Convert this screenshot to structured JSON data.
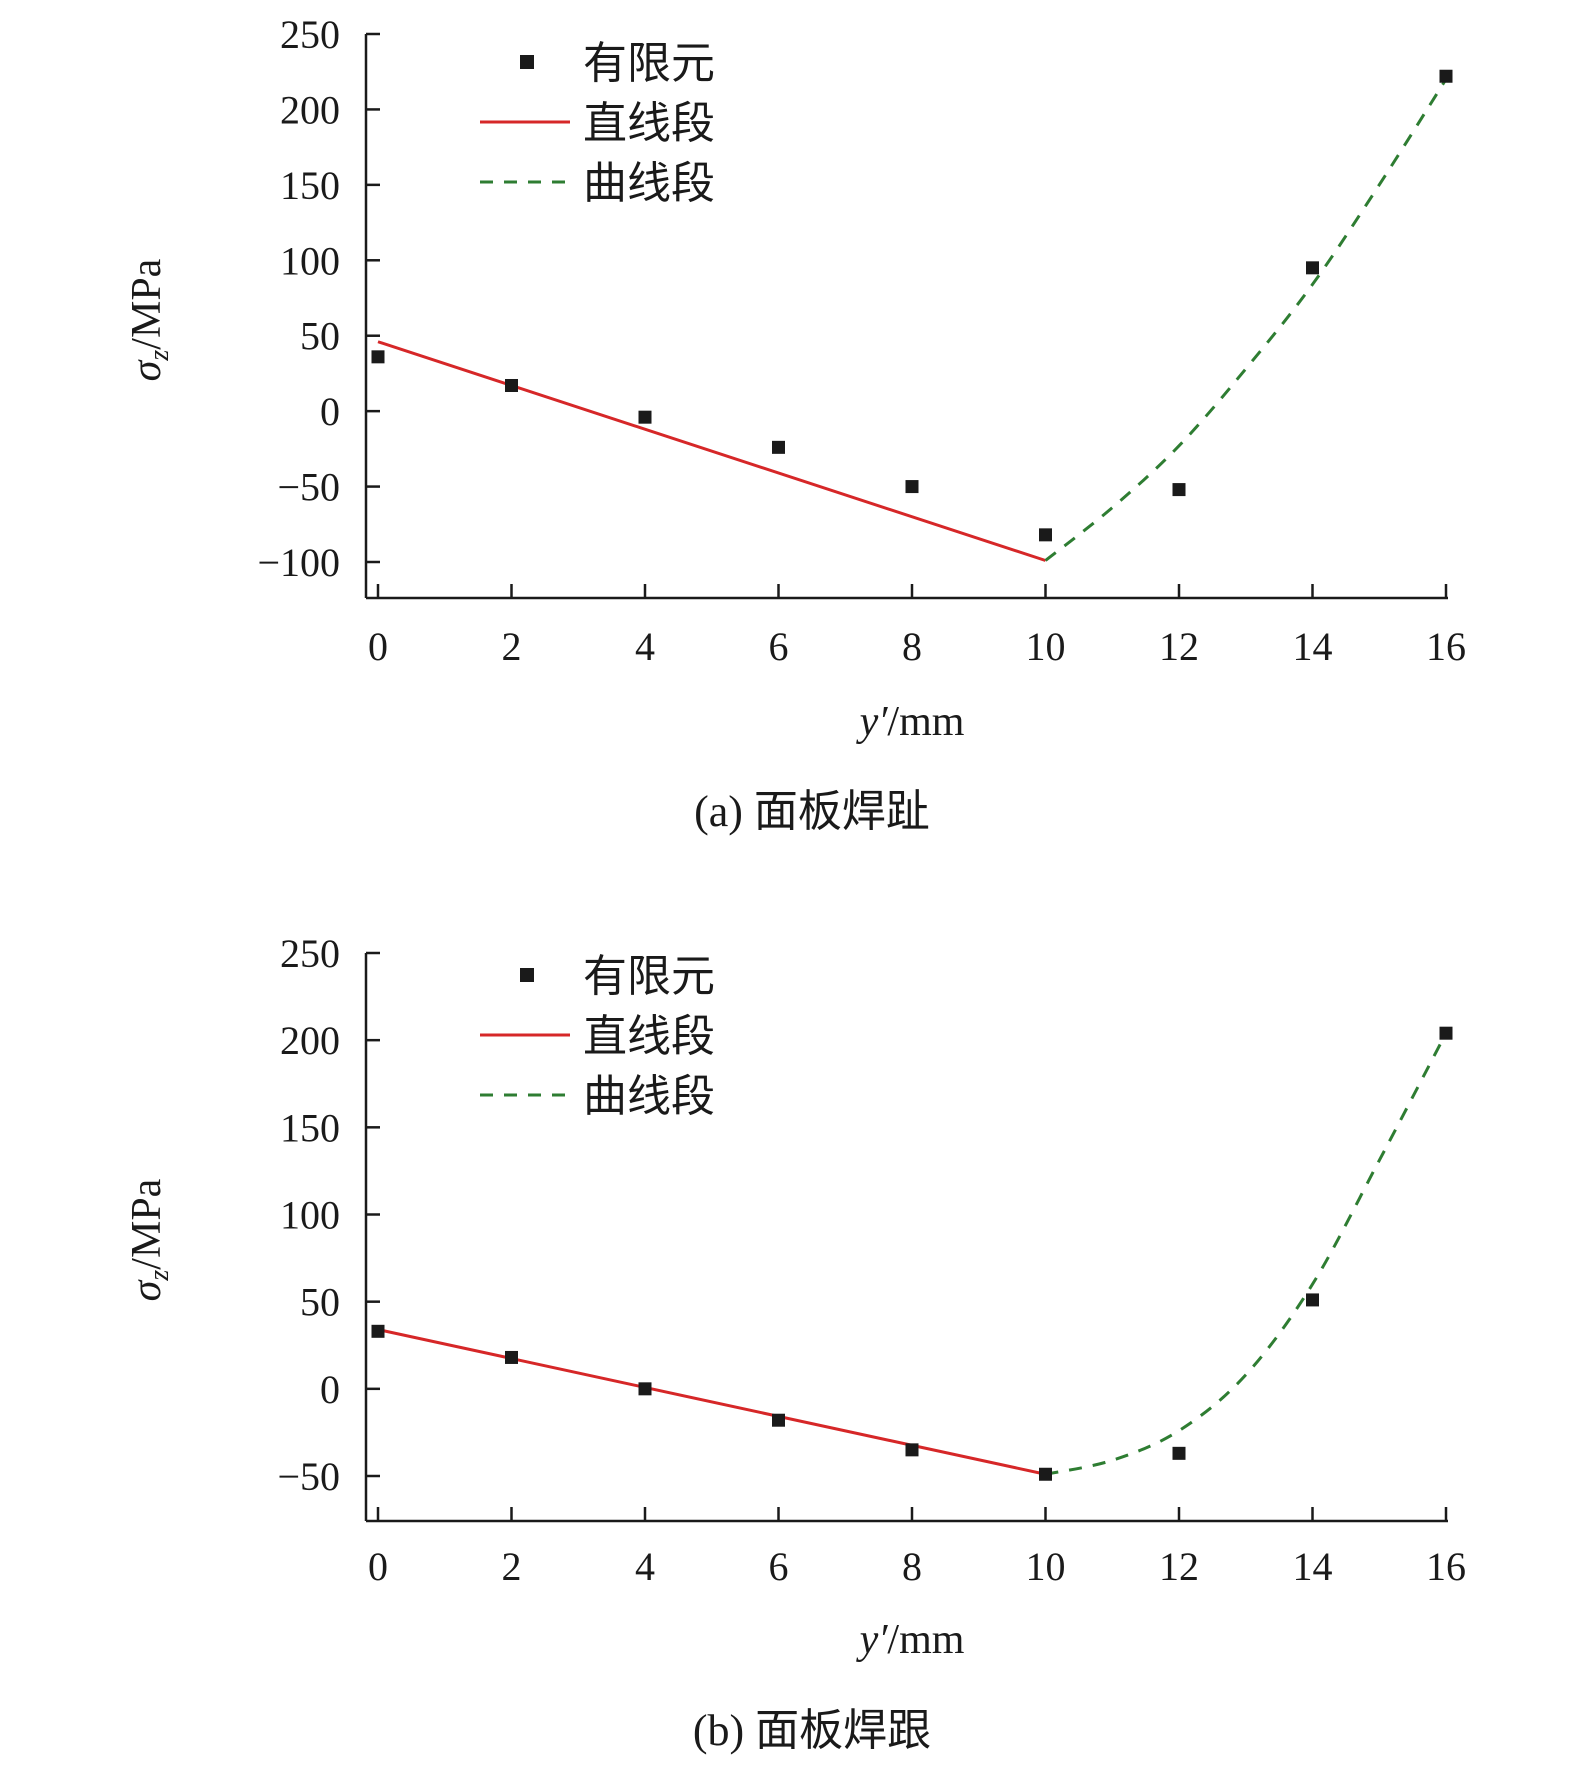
{
  "colors": {
    "straight_line": "#d62728",
    "curve_line": "#2e7d32",
    "marker": "#1a1a1a",
    "axis": "#1a1a1a"
  },
  "chart_data": [
    {
      "type": "scatter",
      "caption": "(a) 面板焊趾",
      "xlabel_var": "y′",
      "xlabel_unit": "/mm",
      "ylabel_var": "σ",
      "ylabel_sub": "z",
      "ylabel_unit": "/MPa",
      "xlim": [
        0,
        16
      ],
      "ylim": [
        -125,
        250
      ],
      "xticks": [
        0,
        2,
        4,
        6,
        8,
        10,
        12,
        14,
        16
      ],
      "yticks": [
        -100,
        -50,
        0,
        50,
        100,
        150,
        200,
        250
      ],
      "ytick_labels": [
        "−100",
        "−50",
        "0",
        "50",
        "100",
        "150",
        "200",
        "250"
      ],
      "legend": [
        {
          "label": "有限元",
          "style": "marker"
        },
        {
          "label": "直线段",
          "style": "solid"
        },
        {
          "label": "曲线段",
          "style": "dashed"
        }
      ],
      "series": [
        {
          "name": "有限元",
          "kind": "points",
          "x": [
            0,
            2,
            4,
            6,
            8,
            10,
            12,
            14,
            16
          ],
          "y": [
            36,
            17,
            -4,
            -24,
            -50,
            -82,
            -52,
            95,
            222
          ]
        },
        {
          "name": "直线段",
          "kind": "line",
          "x": [
            0,
            10
          ],
          "y": [
            46,
            -99
          ]
        },
        {
          "name": "曲线段",
          "kind": "curve",
          "x": [
            10,
            11,
            12,
            13,
            14,
            15,
            16
          ],
          "y": [
            -99,
            -64,
            -23,
            28,
            84,
            150,
            220
          ]
        }
      ]
    },
    {
      "type": "scatter",
      "caption": "(b) 面板焊跟",
      "xlabel_var": "y′",
      "xlabel_unit": "/mm",
      "ylabel_var": "σ",
      "ylabel_sub": "z",
      "ylabel_unit": "/MPa",
      "xlim": [
        0,
        16
      ],
      "ylim": [
        -75,
        250
      ],
      "xticks": [
        0,
        2,
        4,
        6,
        8,
        10,
        12,
        14,
        16
      ],
      "yticks": [
        -50,
        0,
        50,
        100,
        150,
        200,
        250
      ],
      "ytick_labels": [
        "−50",
        "0",
        "50",
        "100",
        "150",
        "200",
        "250"
      ],
      "legend": [
        {
          "label": "有限元",
          "style": "marker"
        },
        {
          "label": "直线段",
          "style": "solid"
        },
        {
          "label": "曲线段",
          "style": "dashed"
        }
      ],
      "series": [
        {
          "name": "有限元",
          "kind": "points",
          "x": [
            0,
            2,
            4,
            6,
            8,
            10,
            12,
            14,
            16
          ],
          "y": [
            33,
            18,
            0,
            -18,
            -35,
            -49,
            -37,
            51,
            204
          ]
        },
        {
          "name": "直线段",
          "kind": "line",
          "x": [
            0,
            10
          ],
          "y": [
            34,
            -49
          ]
        },
        {
          "name": "曲线段",
          "kind": "curve",
          "x": [
            10,
            11,
            12,
            13,
            14,
            15,
            16
          ],
          "y": [
            -49,
            -41,
            -24,
            8,
            60,
            131,
            204
          ]
        }
      ]
    }
  ]
}
